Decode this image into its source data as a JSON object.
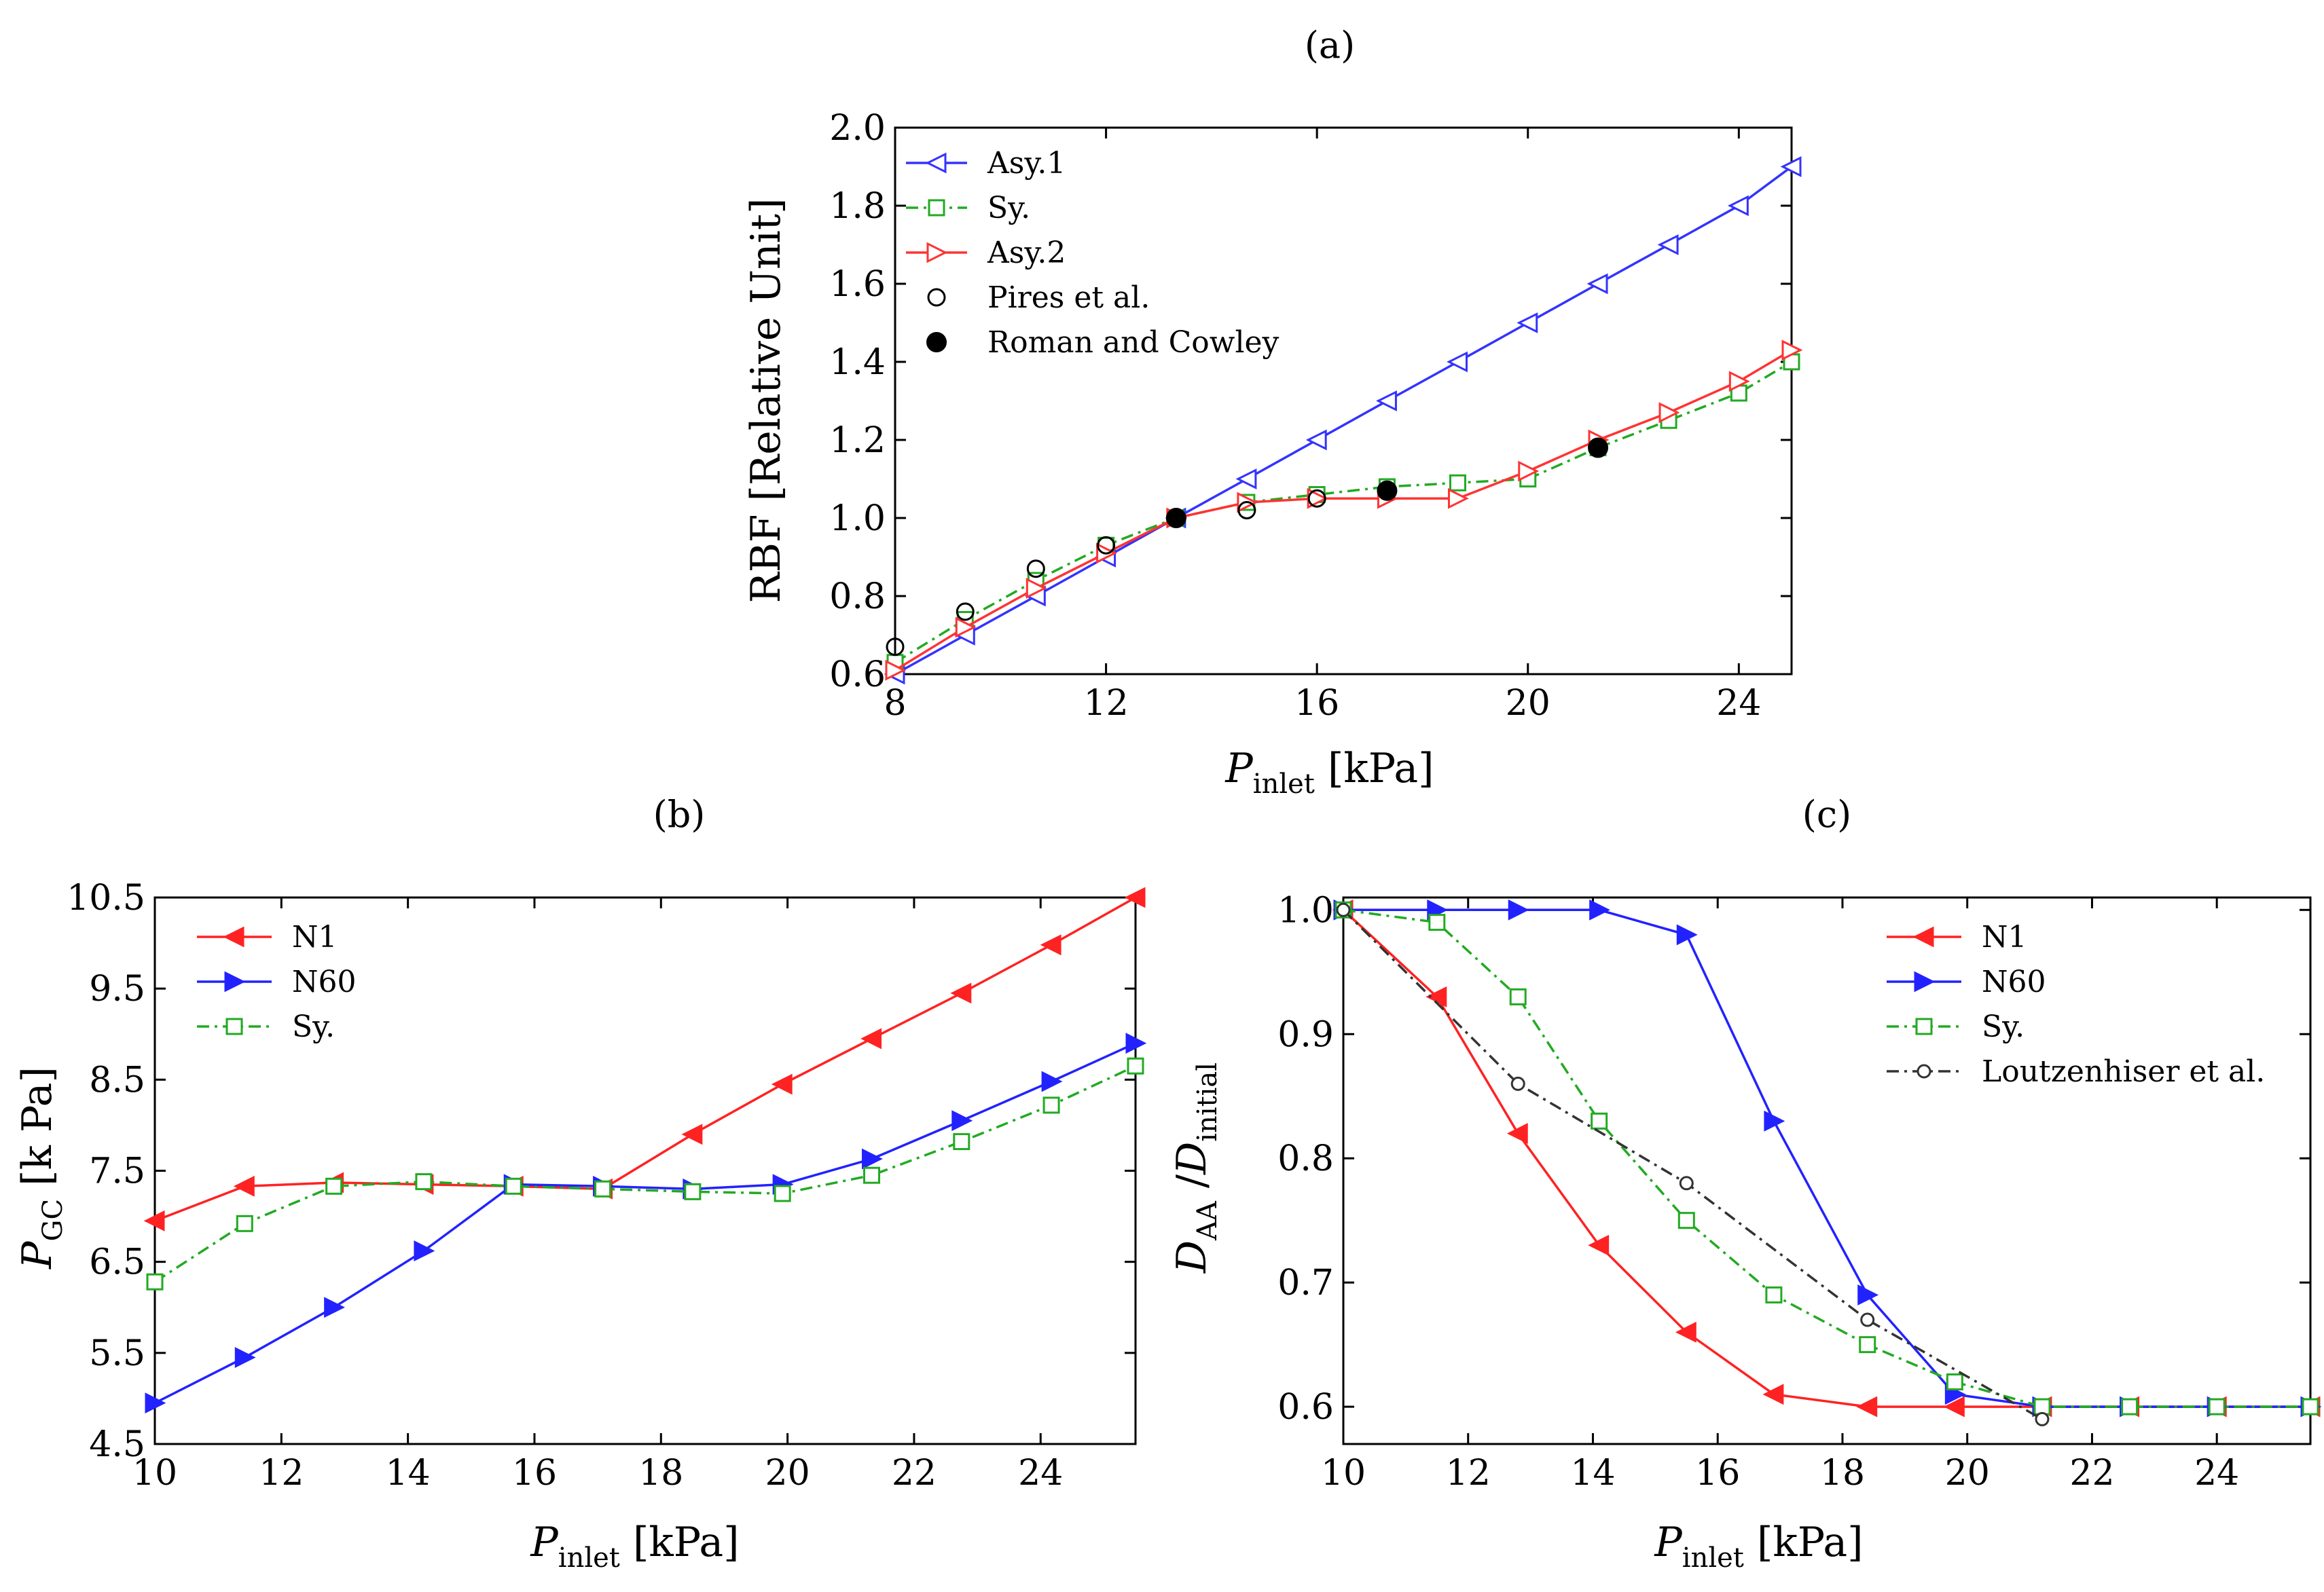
{
  "chart_data": [
    {
      "id": "a",
      "type": "line",
      "panel_label": "(a)",
      "xlabel": "P",
      "xlabel_sub": "inlet",
      "xlabel_unit": "[kPa]",
      "ylabel": "RBF [Relative Unit]",
      "xlim": [
        8,
        25
      ],
      "ylim": [
        0.6,
        2.0
      ],
      "xticks": [
        8,
        12,
        16,
        20,
        24
      ],
      "yticks": [
        0.6,
        0.8,
        1.0,
        1.2,
        1.4,
        1.6,
        1.8,
        2.0
      ],
      "ytick_labels": [
        "0.6",
        "0.8",
        "1.0",
        "1.2",
        "1.4",
        "1.6",
        "1.8",
        "2.0"
      ],
      "legend_position": "top-left",
      "series": [
        {
          "name": "Asy.1",
          "color": "#3333ff",
          "marker": "tri-left-open",
          "line": "solid",
          "x": [
            8,
            9.33,
            10.67,
            12,
            13.33,
            14.67,
            16,
            17.33,
            18.67,
            20,
            21.33,
            22.67,
            24,
            25
          ],
          "y": [
            0.6,
            0.7,
            0.8,
            0.9,
            1.0,
            1.1,
            1.2,
            1.3,
            1.4,
            1.5,
            1.6,
            1.7,
            1.8,
            1.9
          ]
        },
        {
          "name": "Sy.",
          "color": "#22aa22",
          "marker": "square-open",
          "line": "dashdot",
          "x": [
            8,
            9.33,
            10.67,
            12,
            13.33,
            14.67,
            16,
            17.33,
            18.67,
            20,
            21.33,
            22.67,
            24,
            25
          ],
          "y": [
            0.63,
            0.74,
            0.84,
            0.93,
            1.0,
            1.04,
            1.06,
            1.08,
            1.09,
            1.1,
            1.18,
            1.25,
            1.32,
            1.4
          ]
        },
        {
          "name": "Asy.2",
          "color": "#ff3333",
          "marker": "tri-right-open",
          "line": "solid",
          "x": [
            8,
            9.33,
            10.67,
            12,
            13.33,
            14.67,
            16,
            17.33,
            18.67,
            20,
            21.33,
            22.67,
            24,
            25
          ],
          "y": [
            0.61,
            0.72,
            0.82,
            0.91,
            1.0,
            1.04,
            1.05,
            1.05,
            1.05,
            1.12,
            1.2,
            1.27,
            1.35,
            1.43
          ]
        },
        {
          "name": "Pires et al.",
          "color": "#000000",
          "marker": "circle-open",
          "line": "none",
          "x": [
            8,
            9.33,
            10.67,
            12,
            14.67,
            16,
            17.33
          ],
          "y": [
            0.67,
            0.76,
            0.87,
            0.93,
            1.02,
            1.05,
            1.07
          ]
        },
        {
          "name": "Roman and Cowley",
          "color": "#000000",
          "marker": "circle-filled",
          "line": "none",
          "x": [
            13.33,
            17.33,
            21.33
          ],
          "y": [
            1.0,
            1.07,
            1.18
          ]
        }
      ]
    },
    {
      "id": "b",
      "type": "line",
      "panel_label": "(b)",
      "xlabel": "P",
      "xlabel_sub": "inlet",
      "xlabel_unit": "[kPa]",
      "ylabel": "P",
      "ylabel_sub": "GC",
      "ylabel_unit": "[k Pa]",
      "xlim": [
        10,
        25.5
      ],
      "ylim": [
        4.5,
        10.5
      ],
      "xticks": [
        10,
        12,
        14,
        16,
        18,
        20,
        22,
        24
      ],
      "yticks": [
        4.5,
        5.5,
        6.5,
        7.5,
        8.5,
        9.5,
        10.5
      ],
      "ytick_labels": [
        "4.5",
        "5.5",
        "6.5",
        "7.5",
        "8.5",
        "9.5",
        "10.5"
      ],
      "legend_position": "top-left",
      "series": [
        {
          "name": "N1",
          "color": "#ff2222",
          "marker": "tri-left-filled",
          "line": "solid",
          "x": [
            10,
            11.42,
            12.83,
            14.25,
            15.67,
            17.08,
            18.5,
            19.92,
            21.33,
            22.75,
            24.17,
            25.5
          ],
          "y": [
            6.95,
            7.33,
            7.37,
            7.35,
            7.33,
            7.3,
            7.9,
            8.45,
            8.95,
            9.45,
            9.98,
            10.5
          ]
        },
        {
          "name": "N60",
          "color": "#2222ff",
          "marker": "tri-right-filled",
          "line": "solid",
          "x": [
            10,
            11.42,
            12.83,
            14.25,
            15.67,
            17.08,
            18.5,
            19.92,
            21.33,
            22.75,
            24.17,
            25.5
          ],
          "y": [
            4.95,
            5.45,
            6.0,
            6.62,
            7.35,
            7.33,
            7.3,
            7.35,
            7.63,
            8.05,
            8.48,
            8.9
          ]
        },
        {
          "name": "Sy.",
          "color": "#22aa22",
          "marker": "square-open",
          "line": "dashdot",
          "x": [
            10,
            11.42,
            12.83,
            14.25,
            15.67,
            17.08,
            18.5,
            19.92,
            21.33,
            22.75,
            24.17,
            25.5
          ],
          "y": [
            6.28,
            6.92,
            7.33,
            7.38,
            7.33,
            7.3,
            7.27,
            7.25,
            7.45,
            7.82,
            8.22,
            8.65
          ]
        }
      ]
    },
    {
      "id": "c",
      "type": "line",
      "panel_label": "(c)",
      "xlabel": "P",
      "xlabel_sub": "inlet",
      "xlabel_unit": "[kPa]",
      "ylabel": "D",
      "ylabel_sub": "AA",
      "ylabel_den": "D",
      "ylabel_den_sub": "initial",
      "xlim": [
        10,
        25.5
      ],
      "ylim": [
        0.57,
        1.01
      ],
      "xticks": [
        10,
        12,
        14,
        16,
        18,
        20,
        22,
        24
      ],
      "yticks": [
        0.6,
        0.7,
        0.8,
        0.9,
        1.0
      ],
      "ytick_labels": [
        "0.6",
        "0.7",
        "0.8",
        "0.9",
        "1.0"
      ],
      "legend_position": "top-right",
      "series": [
        {
          "name": "N1",
          "color": "#ff2222",
          "marker": "tri-left-filled",
          "line": "solid",
          "x": [
            10,
            11.5,
            12.8,
            14.1,
            15.5,
            16.9,
            18.4,
            19.8,
            21.2,
            22.6,
            24.0,
            25.5
          ],
          "y": [
            1.0,
            0.93,
            0.82,
            0.73,
            0.66,
            0.61,
            0.6,
            0.6,
            0.6,
            0.6,
            0.6,
            0.6
          ]
        },
        {
          "name": "N60",
          "color": "#2222ff",
          "marker": "tri-right-filled",
          "line": "solid",
          "x": [
            10,
            11.5,
            12.8,
            14.1,
            15.5,
            16.9,
            18.4,
            19.8,
            21.2,
            22.6,
            24.0,
            25.5
          ],
          "y": [
            1.0,
            1.0,
            1.0,
            1.0,
            0.98,
            0.83,
            0.69,
            0.61,
            0.6,
            0.6,
            0.6,
            0.6
          ]
        },
        {
          "name": "Sy.",
          "color": "#22aa22",
          "marker": "square-open",
          "line": "dashdot",
          "x": [
            10,
            11.5,
            12.8,
            14.1,
            15.5,
            16.9,
            18.4,
            19.8,
            21.2,
            22.6,
            24.0,
            25.5
          ],
          "y": [
            1.0,
            0.99,
            0.93,
            0.83,
            0.75,
            0.69,
            0.65,
            0.62,
            0.6,
            0.6,
            0.6,
            0.6
          ]
        },
        {
          "name": "Loutzenhiser et al.",
          "color": "#333333",
          "marker": "circle-open-small",
          "line": "dashdot",
          "x": [
            10,
            12.8,
            15.5,
            18.4,
            21.2
          ],
          "y": [
            1.0,
            0.86,
            0.78,
            0.67,
            0.59
          ]
        }
      ]
    }
  ]
}
